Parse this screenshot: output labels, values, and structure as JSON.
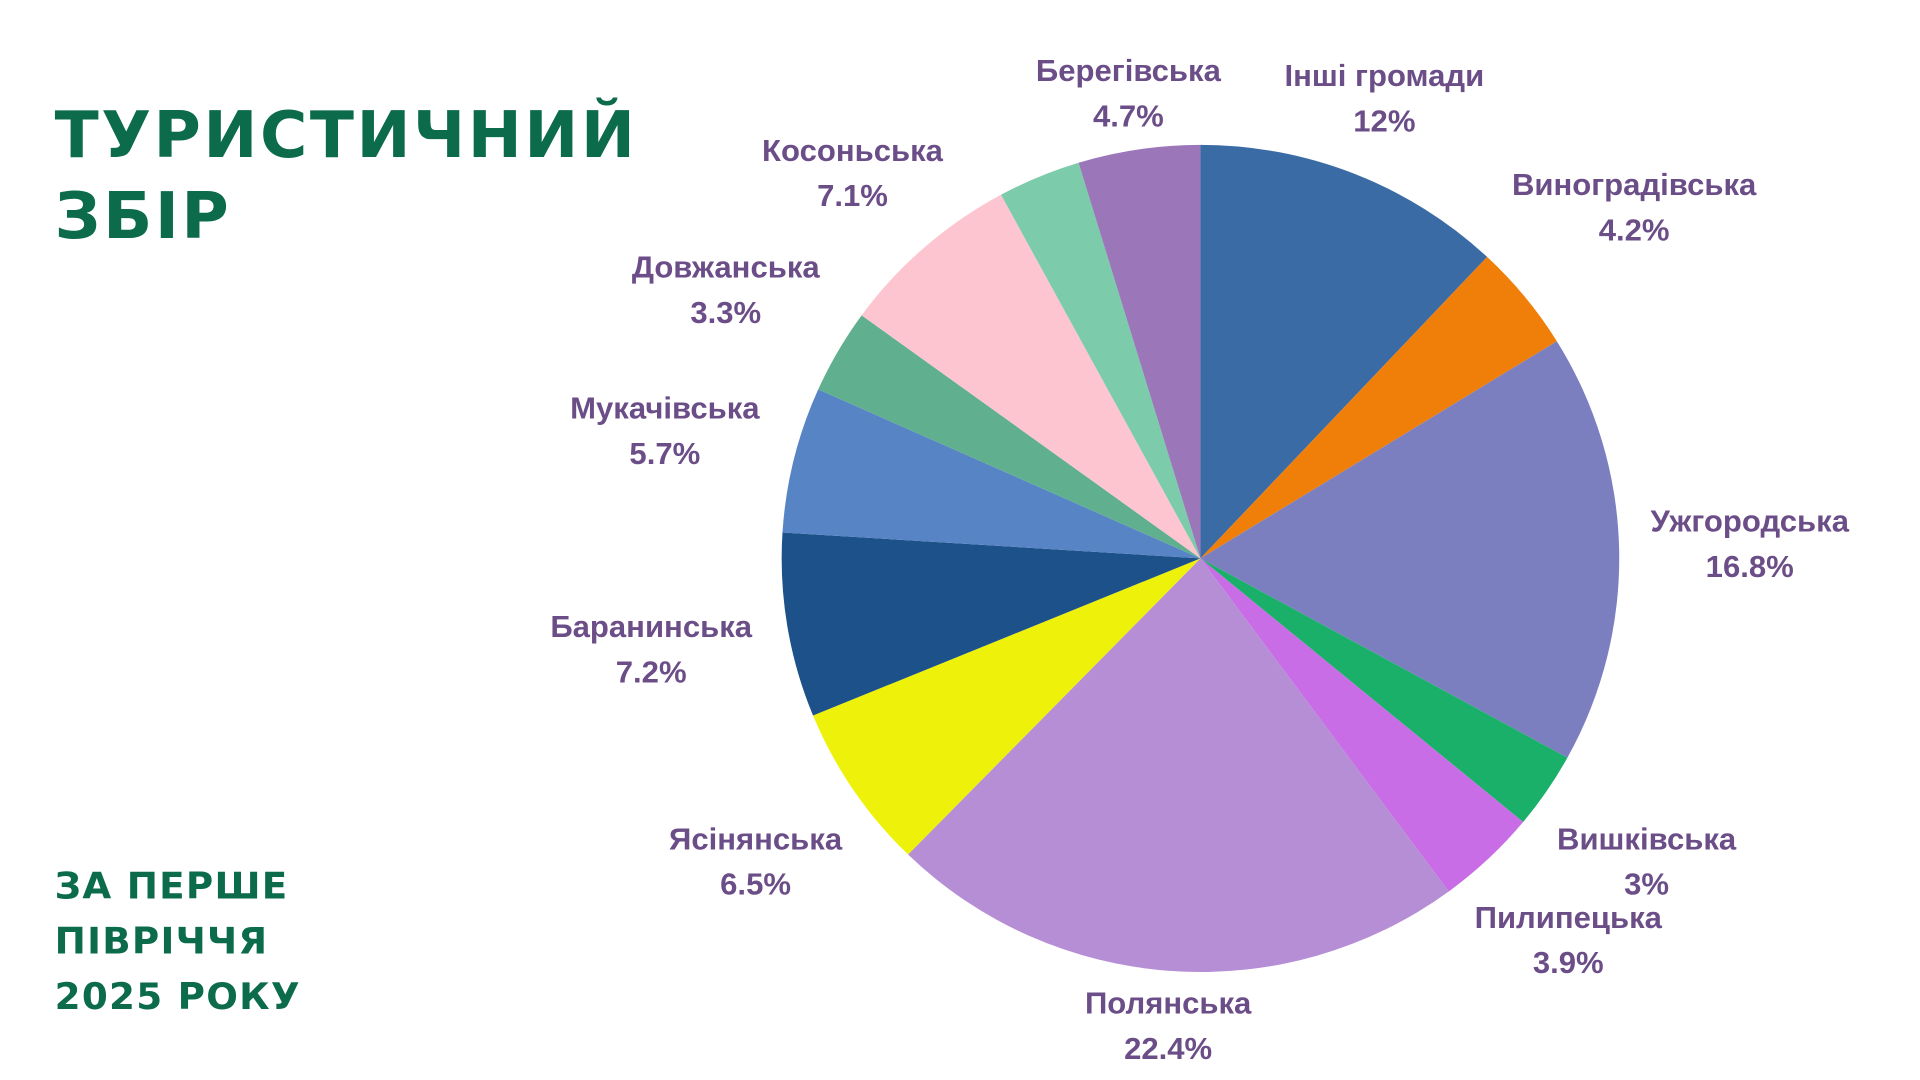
{
  "title": {
    "line1": "ТУРИСТИЧНИЙ",
    "line2": "ЗБІР"
  },
  "subtitle": {
    "line1": "ЗА ПЕРШЕ",
    "line2": "ПІВРІЧЧЯ",
    "line3": "2025 РОКУ"
  },
  "chart_data": {
    "type": "pie",
    "start": "top, clockwise",
    "slices": [
      {
        "name": "Інші громади",
        "label": "12%",
        "value": 12,
        "color": "#3b6ba5"
      },
      {
        "name": "Виноградівська",
        "label": "4.2%",
        "value": 4.2,
        "color": "#f07f09"
      },
      {
        "name": "Ужгородська",
        "label": "16.8%",
        "value": 16.8,
        "color": "#7b7fc0"
      },
      {
        "name": "Вишківська",
        "label": "3%",
        "value": 3,
        "color": "#1bb06a"
      },
      {
        "name": "Пилипецька",
        "label": "3.9%",
        "value": 3.9,
        "color": "#c86de6"
      },
      {
        "name": "Полянська",
        "label": "22.4%",
        "value": 22.4,
        "color": "#b68ed6"
      },
      {
        "name": "Ясінянська",
        "label": "6.5%",
        "value": 6.5,
        "color": "#eef20a"
      },
      {
        "name": "Баранинська",
        "label": "7.2%",
        "value": 7.2,
        "color": "#1d5189"
      },
      {
        "name": "Мукачівська",
        "label": "5.7%",
        "value": 5.7,
        "color": "#5784c4"
      },
      {
        "name": "Довжанська",
        "label": "3.3%",
        "value": 3.3,
        "color": "#60b08f"
      },
      {
        "name": "Косоньська",
        "label": "7.1%",
        "value": 7.1,
        "color": "#fdc5cf"
      },
      {
        "name": "",
        "label": "",
        "value": 3.2,
        "color": "#7ccbab"
      },
      {
        "name": "Берегівська",
        "label": "4.7%",
        "value": 4.7,
        "color": "#9b77b9"
      }
    ]
  }
}
